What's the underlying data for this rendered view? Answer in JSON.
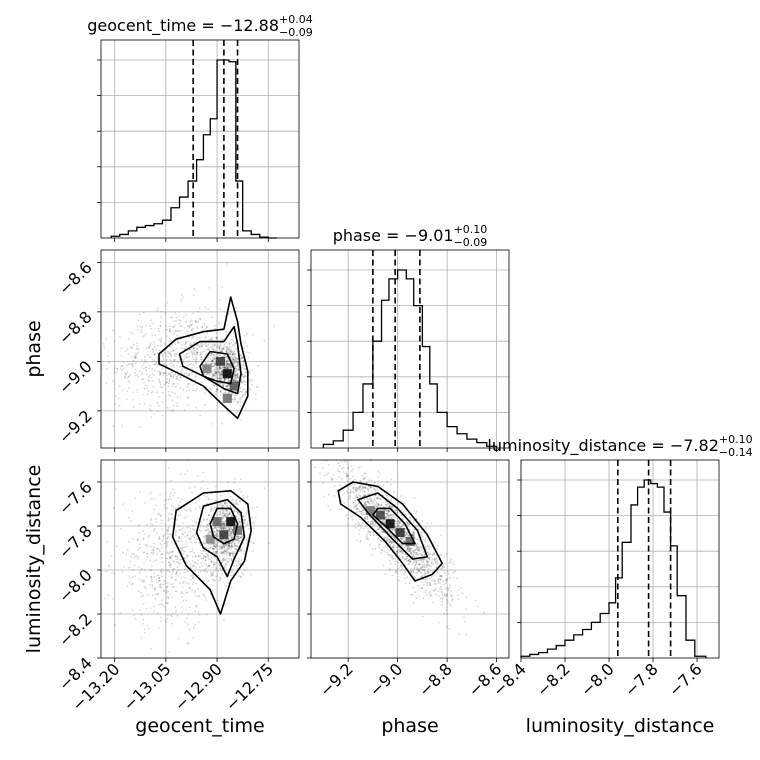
{
  "chart_data": {
    "type": "corner",
    "parameters": [
      {
        "name": "geocent_time",
        "axis_label": "geocent_time",
        "title_prefix": "geocent_time = ",
        "median": "−12.88",
        "plus": "+0.04",
        "minus": "−0.09",
        "quantiles": [
          -12.97,
          -12.88,
          -12.84
        ],
        "range": [
          -13.24,
          -12.66
        ],
        "ticks": [
          -13.2,
          -13.05,
          -12.9,
          -12.75
        ],
        "tick_labels": [
          "−13.20",
          "−13.05",
          "−12.90",
          "−12.75"
        ],
        "hist_bins": [
          -13.21,
          -13.185,
          -13.16,
          -13.135,
          -13.11,
          -13.085,
          -13.06,
          -13.035,
          -13.01,
          -12.985,
          -12.96,
          -12.94,
          -12.92,
          -12.9,
          -12.885,
          -12.865,
          -12.845,
          -12.825,
          -12.8,
          -12.775,
          -12.75,
          -12.725
        ],
        "hist_counts": [
          0.01,
          0.02,
          0.04,
          0.06,
          0.07,
          0.08,
          0.1,
          0.17,
          0.23,
          0.32,
          0.44,
          0.58,
          0.67,
          1.0,
          1.0,
          0.99,
          0.32,
          0.04,
          0.02,
          0.005,
          0.0
        ]
      },
      {
        "name": "phase",
        "axis_label": "phase",
        "title_prefix": "phase = ",
        "median": "−9.01",
        "plus": "+0.10",
        "minus": "−0.09",
        "quantiles": [
          -9.1,
          -9.01,
          -8.91
        ],
        "range": [
          -9.35,
          -8.55
        ],
        "ticks": [
          -9.2,
          -9.0,
          -8.8,
          -8.6
        ],
        "tick_labels": [
          "−9.2",
          "−9.0",
          "−8.8",
          "−8.6"
        ],
        "hist_bins": [
          -9.3,
          -9.26,
          -9.22,
          -9.18,
          -9.14,
          -9.1,
          -9.065,
          -9.035,
          -9.0,
          -8.965,
          -8.935,
          -8.9,
          -8.87,
          -8.84,
          -8.8,
          -8.76,
          -8.72,
          -8.68,
          -8.64,
          -8.6
        ],
        "hist_counts": [
          0.02,
          0.04,
          0.1,
          0.2,
          0.36,
          0.6,
          0.83,
          0.95,
          1.0,
          0.95,
          0.8,
          0.57,
          0.36,
          0.2,
          0.12,
          0.08,
          0.05,
          0.03,
          0.01
        ]
      },
      {
        "name": "luminosity_distance",
        "axis_label": "luminosity_distance",
        "title_prefix": "luminosity_distance = ",
        "median": "−7.82",
        "plus": "+0.10",
        "minus": "−0.14",
        "quantiles": [
          -7.96,
          -7.82,
          -7.72
        ],
        "range": [
          -8.4,
          -7.5
        ],
        "ticks": [
          -8.4,
          -8.2,
          -8.0,
          -7.8,
          -7.6
        ],
        "tick_labels": [
          "−8.4",
          "−8.2",
          "−8.0",
          "−7.8",
          "−7.6"
        ],
        "hist_bins": [
          -8.4,
          -8.36,
          -8.32,
          -8.28,
          -8.24,
          -8.2,
          -8.16,
          -8.12,
          -8.08,
          -8.04,
          -8.0,
          -7.97,
          -7.94,
          -7.9,
          -7.87,
          -7.84,
          -7.81,
          -7.78,
          -7.75,
          -7.72,
          -7.69,
          -7.65,
          -7.61,
          -7.56
        ],
        "hist_counts": [
          0.01,
          0.02,
          0.03,
          0.05,
          0.07,
          0.1,
          0.13,
          0.16,
          0.2,
          0.25,
          0.31,
          0.45,
          0.65,
          0.86,
          0.96,
          1.0,
          0.98,
          0.96,
          0.82,
          0.63,
          0.35,
          0.1,
          0.01
        ]
      }
    ],
    "scatter_gaussians": [
      {
        "x": "geocent_time",
        "y": "phase",
        "components": [
          {
            "weight": 0.55,
            "mean": [
              -12.87,
              -9.04
            ],
            "sd": [
              0.03,
              0.06
            ],
            "rho": -0.3
          },
          {
            "weight": 0.45,
            "mean": [
              -13.02,
              -8.98
            ],
            "sd": [
              0.09,
              0.1
            ],
            "rho": 0.25
          }
        ],
        "hot_bins": [
          [
            -12.87,
            -9.05,
            1.0
          ],
          [
            -12.89,
            -9.0,
            0.75
          ],
          [
            -12.85,
            -9.1,
            0.6
          ],
          [
            -12.93,
            -9.03,
            0.4
          ],
          [
            -12.87,
            -9.15,
            0.5
          ]
        ]
      },
      {
        "x": "geocent_time",
        "y": "luminosity_distance",
        "components": [
          {
            "weight": 0.55,
            "mean": [
              -12.87,
              -7.83
            ],
            "sd": [
              0.03,
              0.08
            ],
            "rho": 0.1
          },
          {
            "weight": 0.45,
            "mean": [
              -13.02,
              -7.95
            ],
            "sd": [
              0.09,
              0.15
            ],
            "rho": 0.1
          }
        ],
        "hot_bins": [
          [
            -12.86,
            -7.78,
            1.0
          ],
          [
            -12.88,
            -7.84,
            0.75
          ],
          [
            -12.9,
            -7.78,
            0.55
          ],
          [
            -12.84,
            -7.82,
            0.5
          ],
          [
            -12.92,
            -7.86,
            0.35
          ]
        ]
      },
      {
        "x": "phase",
        "y": "luminosity_distance",
        "components": [
          {
            "weight": 1.0,
            "mean": [
              -9.01,
              -7.83
            ],
            "sd": [
              0.11,
              0.14
            ],
            "rho": -0.85
          }
        ],
        "hot_bins": [
          [
            -9.03,
            -7.79,
            1.0
          ],
          [
            -8.99,
            -7.83,
            0.8
          ],
          [
            -9.07,
            -7.75,
            0.7
          ],
          [
            -8.95,
            -7.87,
            0.55
          ],
          [
            -9.11,
            -7.73,
            0.45
          ]
        ]
      }
    ],
    "contours": [
      {
        "x": "geocent_time",
        "y": "phase",
        "levels": [
          [
            [
              -13.07,
              -8.97
            ],
            [
              -13.02,
              -8.91
            ],
            [
              -12.94,
              -8.88
            ],
            [
              -12.88,
              -8.87
            ],
            [
              -12.86,
              -8.74
            ],
            [
              -12.84,
              -8.84
            ],
            [
              -12.83,
              -8.93
            ],
            [
              -12.81,
              -9.04
            ],
            [
              -12.81,
              -9.14
            ],
            [
              -12.84,
              -9.23
            ],
            [
              -12.88,
              -9.18
            ],
            [
              -12.94,
              -9.1
            ],
            [
              -13.01,
              -9.05
            ],
            [
              -13.07,
              -9.01
            ]
          ],
          [
            [
              -13.01,
              -8.97
            ],
            [
              -12.95,
              -8.92
            ],
            [
              -12.88,
              -8.92
            ],
            [
              -12.85,
              -8.86
            ],
            [
              -12.84,
              -8.93
            ],
            [
              -12.83,
              -9.05
            ],
            [
              -12.84,
              -9.13
            ],
            [
              -12.88,
              -9.11
            ],
            [
              -12.94,
              -9.06
            ],
            [
              -13.0,
              -9.02
            ]
          ],
          [
            [
              -12.95,
              -9.02
            ],
            [
              -12.92,
              -8.96
            ],
            [
              -12.87,
              -8.97
            ],
            [
              -12.85,
              -9.03
            ],
            [
              -12.86,
              -9.09
            ],
            [
              -12.9,
              -9.08
            ],
            [
              -12.94,
              -9.06
            ]
          ]
        ]
      },
      {
        "x": "geocent_time",
        "y": "luminosity_distance",
        "levels": [
          [
            [
              -13.03,
              -7.85
            ],
            [
              -13.02,
              -7.73
            ],
            [
              -12.94,
              -7.65
            ],
            [
              -12.86,
              -7.64
            ],
            [
              -12.81,
              -7.7
            ],
            [
              -12.8,
              -7.82
            ],
            [
              -12.82,
              -7.96
            ],
            [
              -12.86,
              -8.05
            ],
            [
              -12.89,
              -8.2
            ],
            [
              -12.92,
              -8.09
            ],
            [
              -12.99,
              -7.98
            ]
          ],
          [
            [
              -12.96,
              -7.83
            ],
            [
              -12.94,
              -7.71
            ],
            [
              -12.87,
              -7.68
            ],
            [
              -12.83,
              -7.74
            ],
            [
              -12.82,
              -7.85
            ],
            [
              -12.85,
              -7.95
            ],
            [
              -12.87,
              -8.03
            ],
            [
              -12.9,
              -7.94
            ],
            [
              -12.94,
              -7.9
            ]
          ],
          [
            [
              -12.92,
              -7.79
            ],
            [
              -12.9,
              -7.72
            ],
            [
              -12.86,
              -7.72
            ],
            [
              -12.84,
              -7.79
            ],
            [
              -12.85,
              -7.86
            ],
            [
              -12.88,
              -7.88
            ],
            [
              -12.91,
              -7.85
            ]
          ]
        ]
      },
      {
        "x": "phase",
        "y": "luminosity_distance",
        "levels": [
          [
            [
              -9.24,
              -7.64
            ],
            [
              -9.18,
              -7.6
            ],
            [
              -9.08,
              -7.62
            ],
            [
              -8.98,
              -7.7
            ],
            [
              -8.88,
              -7.84
            ],
            [
              -8.82,
              -7.97
            ],
            [
              -8.86,
              -8.02
            ],
            [
              -8.93,
              -8.05
            ],
            [
              -8.98,
              -7.97
            ],
            [
              -9.05,
              -7.87
            ],
            [
              -9.15,
              -7.76
            ],
            [
              -9.23,
              -7.7
            ]
          ],
          [
            [
              -9.16,
              -7.68
            ],
            [
              -9.08,
              -7.65
            ],
            [
              -9.0,
              -7.72
            ],
            [
              -8.92,
              -7.82
            ],
            [
              -8.88,
              -7.94
            ],
            [
              -8.94,
              -7.95
            ],
            [
              -9.02,
              -7.86
            ],
            [
              -9.12,
              -7.74
            ]
          ],
          [
            [
              -9.08,
              -7.72
            ],
            [
              -9.03,
              -7.72
            ],
            [
              -8.97,
              -7.79
            ],
            [
              -8.93,
              -7.88
            ],
            [
              -8.98,
              -7.88
            ],
            [
              -9.05,
              -7.8
            ],
            [
              -9.1,
              -7.75
            ]
          ]
        ]
      }
    ],
    "grid": true,
    "hist_style": "step",
    "quantile_lines": "dashed"
  }
}
